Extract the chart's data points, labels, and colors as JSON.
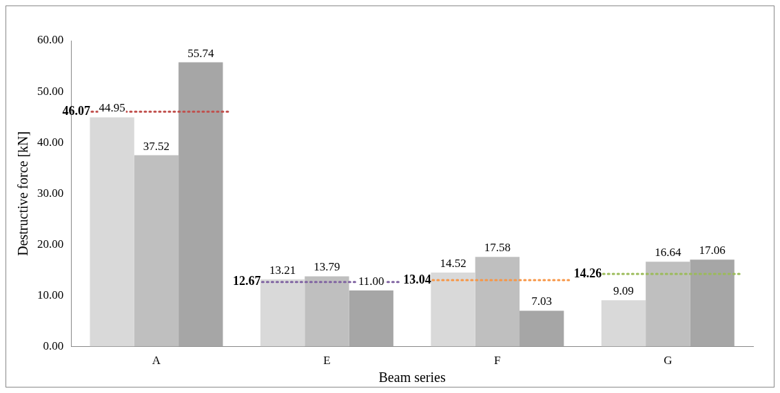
{
  "chart_data": {
    "type": "bar",
    "xlabel": "Beam series",
    "ylabel": "Destructive force [kN]",
    "categories": [
      "A",
      "E",
      "F",
      "G"
    ],
    "series": [
      {
        "color": "#d9d9d9",
        "values": [
          44.95,
          13.21,
          14.52,
          9.09
        ],
        "value_labels": [
          "44.95",
          "13.21",
          "14.52",
          "9.09"
        ]
      },
      {
        "color": "#bfbfbf",
        "values": [
          37.52,
          13.79,
          17.58,
          16.64
        ],
        "value_labels": [
          "37.52",
          "13.79",
          "17.58",
          "16.64"
        ]
      },
      {
        "color": "#a6a6a6",
        "values": [
          55.74,
          11.0,
          7.03,
          17.06
        ],
        "value_labels": [
          "55.74",
          "11.00",
          "7.03",
          "17.06"
        ]
      }
    ],
    "ylim": [
      0,
      60
    ],
    "yticks": [
      {
        "value": 0,
        "label": "0.00"
      },
      {
        "value": 10,
        "label": "10.00"
      },
      {
        "value": 20,
        "label": "20.00"
      },
      {
        "value": 30,
        "label": "30.00"
      },
      {
        "value": 40,
        "label": "40.00"
      },
      {
        "value": 50,
        "label": "50.00"
      },
      {
        "value": 60,
        "label": "60.00"
      }
    ],
    "ref_lines": [
      {
        "axis": "y",
        "value": 46.07,
        "label": "46.07",
        "color": "#c0504d",
        "line_style": "dotted"
      },
      {
        "axis": "y",
        "value": 12.67,
        "label": "12.67",
        "color": "#8064a2",
        "line_style": "dotted"
      },
      {
        "axis": "y",
        "value": 13.04,
        "label": "13.04",
        "color": "#f79646",
        "line_style": "dotted"
      },
      {
        "axis": "y",
        "value": 14.26,
        "label": "14.26",
        "color": "#9bbb59",
        "line_style": "dotted"
      }
    ],
    "grid": false,
    "legend": false
  }
}
